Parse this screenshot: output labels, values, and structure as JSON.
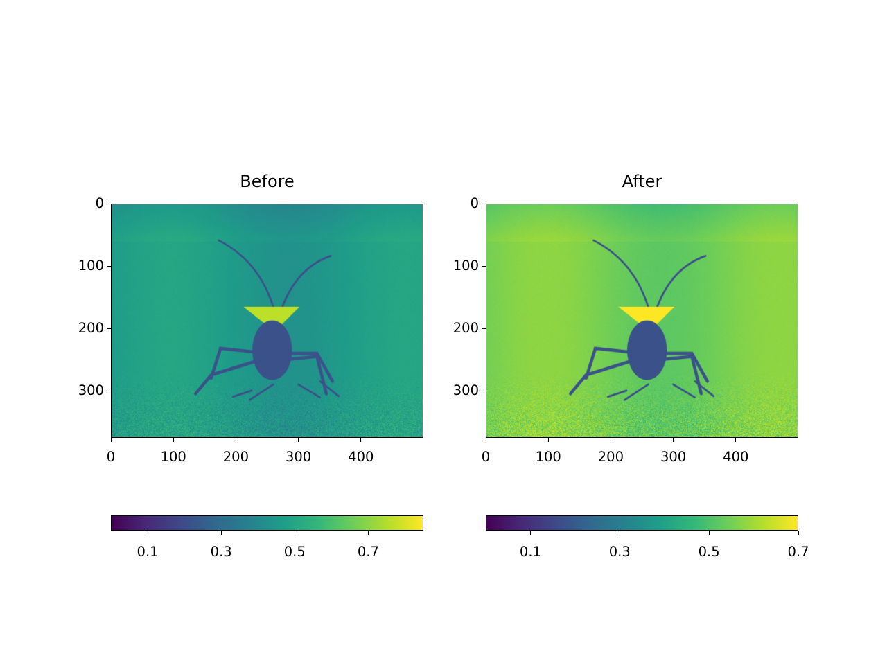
{
  "chart_data": [
    {
      "type": "heatmap",
      "title": "Before",
      "image_extent": {
        "x": [
          0,
          500
        ],
        "y": [
          0,
          375
        ]
      },
      "y_inverted": true,
      "xticks": [
        0,
        100,
        200,
        300,
        400
      ],
      "yticks": [
        0,
        100,
        200,
        300
      ],
      "colormap": "viridis",
      "colorbar": {
        "orientation": "horizontal",
        "range": [
          0.0,
          0.85
        ],
        "ticks": [
          "0.1",
          "0.3",
          "0.5",
          "0.7"
        ]
      },
      "background_value": 0.6
    },
    {
      "type": "heatmap",
      "title": "After",
      "image_extent": {
        "x": [
          0,
          500
        ],
        "y": [
          0,
          375
        ]
      },
      "y_inverted": true,
      "xticks": [
        0,
        100,
        200,
        300,
        400
      ],
      "yticks": [
        0,
        100,
        200,
        300
      ],
      "colormap": "viridis",
      "colorbar": {
        "orientation": "horizontal",
        "range": [
          0.0,
          0.7
        ],
        "ticks": [
          "0.1",
          "0.3",
          "0.5",
          "0.7"
        ]
      },
      "background_value": 0.8
    }
  ],
  "colors": {
    "viridis": [
      "#440154",
      "#482878",
      "#3e4989",
      "#31688e",
      "#26828e",
      "#1f9e89",
      "#35b779",
      "#6ece58",
      "#b5de2b",
      "#fde725"
    ]
  }
}
